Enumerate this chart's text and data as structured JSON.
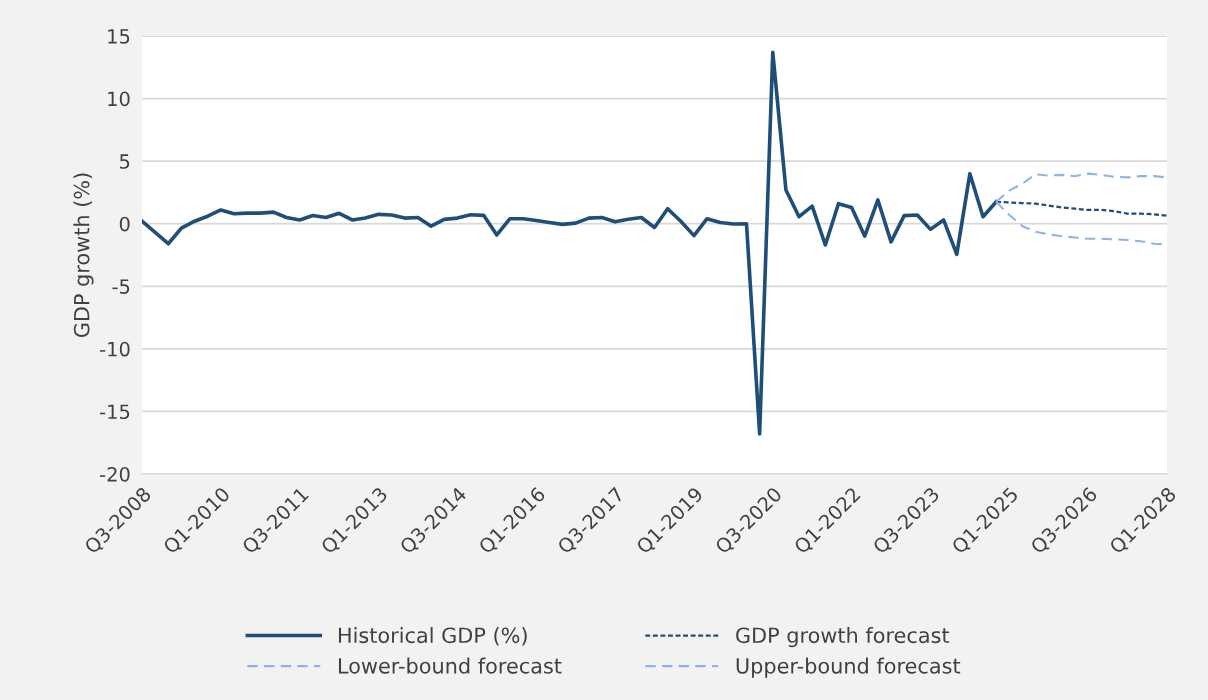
{
  "chart_data": {
    "type": "line",
    "ylabel": "GDP growth (%)",
    "categories": [
      "Q3-2008",
      null,
      null,
      null,
      null,
      null,
      "Q1-2010",
      null,
      null,
      null,
      null,
      null,
      "Q3-2011",
      null,
      null,
      null,
      null,
      null,
      "Q1-2013",
      null,
      null,
      null,
      null,
      null,
      "Q3-2014",
      null,
      null,
      null,
      null,
      null,
      "Q1-2016",
      null,
      null,
      null,
      null,
      null,
      "Q3-2017",
      null,
      null,
      null,
      null,
      null,
      "Q1-2019",
      null,
      null,
      null,
      null,
      null,
      "Q3-2020",
      null,
      null,
      null,
      null,
      null,
      "Q1-2022",
      null,
      null,
      null,
      null,
      null,
      "Q3-2023",
      null,
      null,
      null,
      null,
      null,
      "Q1-2025",
      null,
      null,
      null,
      null,
      null,
      "Q3-2026",
      null,
      null,
      null,
      null,
      null,
      "Q1-2028"
    ],
    "series": [
      {
        "name": "Historical GDP (%)",
        "color": "#1f4e79",
        "line_style": "solid",
        "values": [
          0.2,
          -0.7,
          -1.6,
          -0.35,
          0.2,
          0.6,
          1.1,
          0.8,
          0.85,
          0.85,
          0.93,
          0.5,
          0.3,
          0.65,
          0.5,
          0.83,
          0.3,
          0.45,
          0.75,
          0.7,
          0.45,
          0.5,
          -0.2,
          0.35,
          0.45,
          0.72,
          0.67,
          -0.9,
          0.4,
          0.4,
          0.25,
          0.1,
          -0.05,
          0.05,
          0.45,
          0.5,
          0.15,
          0.35,
          0.5,
          -0.3,
          1.2,
          0.2,
          -0.95,
          0.4,
          0.1,
          -0.02,
          0,
          -16.8,
          13.7,
          2.7,
          0.56,
          1.4,
          -1.7,
          1.6,
          1.3,
          -1.0,
          1.9,
          -1.45,
          0.65,
          0.7,
          -0.45,
          0.3,
          -2.45,
          4.0,
          0.56,
          1.75,
          null,
          null,
          null,
          null,
          null,
          null,
          null,
          null,
          null,
          null,
          null,
          null,
          null
        ]
      },
      {
        "name": "GDP growth forecast",
        "color": "#1f4e79",
        "line_style": "dotted",
        "values": [
          null,
          null,
          null,
          null,
          null,
          null,
          null,
          null,
          null,
          null,
          null,
          null,
          null,
          null,
          null,
          null,
          null,
          null,
          null,
          null,
          null,
          null,
          null,
          null,
          null,
          null,
          null,
          null,
          null,
          null,
          null,
          null,
          null,
          null,
          null,
          null,
          null,
          null,
          null,
          null,
          null,
          null,
          null,
          null,
          null,
          null,
          null,
          null,
          null,
          null,
          null,
          null,
          null,
          null,
          null,
          null,
          null,
          null,
          null,
          null,
          null,
          null,
          null,
          null,
          null,
          1.75,
          1.7,
          1.65,
          1.6,
          1.45,
          1.3,
          1.2,
          1.1,
          1.1,
          1.0,
          0.8,
          0.8,
          0.75,
          0.65
        ]
      },
      {
        "name": "Lower-bound forecast",
        "color": "#8fb4e3",
        "line_style": "dashed",
        "values": [
          null,
          null,
          null,
          null,
          null,
          null,
          null,
          null,
          null,
          null,
          null,
          null,
          null,
          null,
          null,
          null,
          null,
          null,
          null,
          null,
          null,
          null,
          null,
          null,
          null,
          null,
          null,
          null,
          null,
          null,
          null,
          null,
          null,
          null,
          null,
          null,
          null,
          null,
          null,
          null,
          null,
          null,
          null,
          null,
          null,
          null,
          null,
          null,
          null,
          null,
          null,
          null,
          null,
          null,
          null,
          null,
          null,
          null,
          null,
          null,
          null,
          null,
          null,
          null,
          null,
          1.75,
          0.7,
          -0.2,
          -0.65,
          -0.85,
          -1.0,
          -1.1,
          -1.2,
          -1.2,
          -1.25,
          -1.3,
          -1.4,
          -1.6,
          -1.65
        ]
      },
      {
        "name": "Upper-bound forecast",
        "color": "#8fb4e3",
        "line_style": "dashed",
        "values": [
          null,
          null,
          null,
          null,
          null,
          null,
          null,
          null,
          null,
          null,
          null,
          null,
          null,
          null,
          null,
          null,
          null,
          null,
          null,
          null,
          null,
          null,
          null,
          null,
          null,
          null,
          null,
          null,
          null,
          null,
          null,
          null,
          null,
          null,
          null,
          null,
          null,
          null,
          null,
          null,
          null,
          null,
          null,
          null,
          null,
          null,
          null,
          null,
          null,
          null,
          null,
          null,
          null,
          null,
          null,
          null,
          null,
          null,
          null,
          null,
          null,
          null,
          null,
          null,
          null,
          1.75,
          2.65,
          3.2,
          3.95,
          3.85,
          3.9,
          3.8,
          4.0,
          3.9,
          3.75,
          3.7,
          3.8,
          3.8,
          3.7
        ]
      }
    ],
    "ylim": [
      -20,
      15
    ],
    "yticks": [
      -20,
      -15,
      -10,
      -5,
      0,
      5,
      10,
      15
    ],
    "grid": "y",
    "legend": "bottom",
    "marker": "none"
  }
}
